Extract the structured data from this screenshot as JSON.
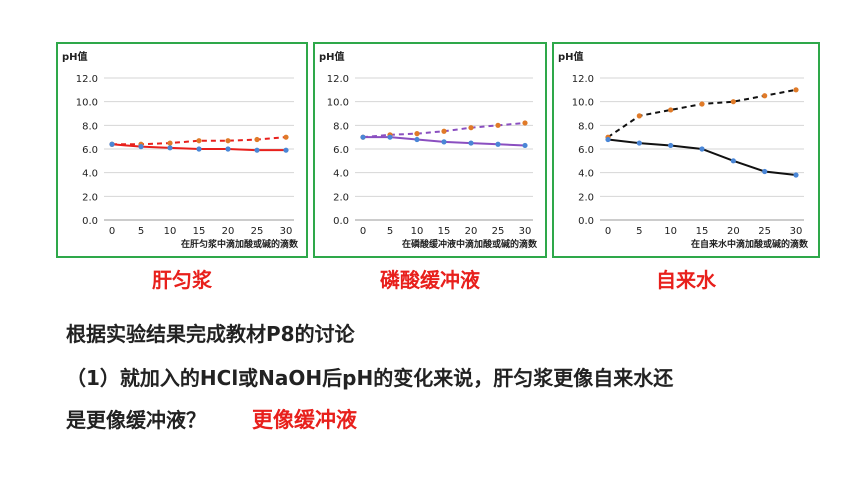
{
  "chart_data": [
    {
      "type": "line",
      "title": "肝匀浆",
      "ylabel": "pH值",
      "xlabel": "在肝匀浆中滴加酸或碱的滴数",
      "x": [
        0,
        5,
        10,
        15,
        20,
        25,
        30
      ],
      "ylim": [
        0,
        12
      ],
      "yticks": [
        "0.0",
        "2.0",
        "4.0",
        "6.0",
        "8.0",
        "10.0",
        "12.0"
      ],
      "series": [
        {
          "style": "dashed",
          "color": "#e8201c",
          "values": [
            6.4,
            6.4,
            6.5,
            6.7,
            6.7,
            6.8,
            7.0
          ]
        },
        {
          "style": "solid",
          "color": "#e8201c",
          "values": [
            6.4,
            6.2,
            6.1,
            6.0,
            6.0,
            5.9,
            5.9
          ]
        }
      ]
    },
    {
      "type": "line",
      "title": "磷酸缓冲液",
      "ylabel": "pH值",
      "xlabel": "在磷酸缓冲液中滴加酸或碱的滴数",
      "x": [
        0,
        5,
        10,
        15,
        20,
        25,
        30
      ],
      "ylim": [
        0,
        12
      ],
      "yticks": [
        "0.0",
        "2.0",
        "4.0",
        "6.0",
        "8.0",
        "10.0",
        "12.0"
      ],
      "series": [
        {
          "style": "dashed",
          "color": "#8a4fc0",
          "values": [
            7.0,
            7.2,
            7.3,
            7.5,
            7.8,
            8.0,
            8.2
          ]
        },
        {
          "style": "solid",
          "color": "#8a4fc0",
          "values": [
            7.0,
            7.0,
            6.8,
            6.6,
            6.5,
            6.4,
            6.3
          ]
        }
      ]
    },
    {
      "type": "line",
      "title": "自来水",
      "ylabel": "pH值",
      "xlabel": "在自来水中滴加酸或碱的滴数",
      "x": [
        0,
        5,
        10,
        15,
        20,
        25,
        30
      ],
      "ylim": [
        0,
        12
      ],
      "yticks": [
        "0.0",
        "2.0",
        "4.0",
        "6.0",
        "8.0",
        "10.0",
        "12.0"
      ],
      "series": [
        {
          "style": "dashed",
          "color": "#111111",
          "values": [
            7.0,
            8.8,
            9.3,
            9.8,
            10.0,
            10.5,
            11.0
          ]
        },
        {
          "style": "solid",
          "color": "#111111",
          "values": [
            6.8,
            6.5,
            6.3,
            6.0,
            5.0,
            4.1,
            3.8
          ]
        }
      ]
    }
  ],
  "text": {
    "heading": "根据实验结果完成教材P8的讨论",
    "q1_line1": "（1）就加入的HCl或NaOH后pH的变化来说，肝匀浆更像自来水还",
    "q1_line2": "是更像缓冲液？",
    "answer": "更像缓冲液"
  }
}
